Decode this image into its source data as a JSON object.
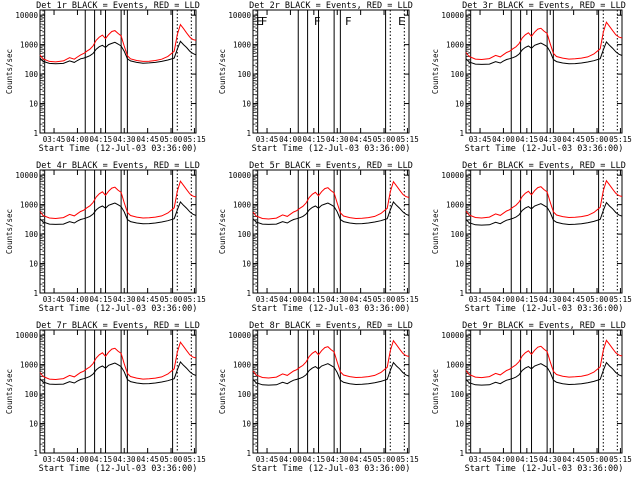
{
  "figure": {
    "xlabel": "Start Time (12-Jul-03 03:36:00)",
    "ylabel": "Counts/sec"
  },
  "chart_data": {
    "type": "line",
    "x_unit": "minutes after 03:36:00",
    "xlim": [
      0,
      100
    ],
    "ylim": [
      1,
      15000
    ],
    "yscale": "log",
    "x_ticks": [
      {
        "label": "03:45",
        "value": 9
      },
      {
        "label": "04:00",
        "value": 24
      },
      {
        "label": "04:15",
        "value": 39
      },
      {
        "label": "04:30",
        "value": 54
      },
      {
        "label": "04:45",
        "value": 69
      },
      {
        "label": "05:00",
        "value": 84
      },
      {
        "label": "05:15",
        "value": 99
      }
    ],
    "y_ticks": [
      {
        "label": "1",
        "value": 1
      },
      {
        "label": "10",
        "value": 10
      },
      {
        "label": "100",
        "value": 100
      },
      {
        "label": "1000",
        "value": 1000
      },
      {
        "label": "10000",
        "value": 10000
      }
    ],
    "solid_markers": [
      3,
      29,
      35,
      42,
      52,
      56,
      85
    ],
    "dotted_markers": [
      2,
      88,
      97
    ],
    "lld_x": [
      0,
      2,
      6,
      10,
      15,
      19,
      22,
      24,
      26,
      28,
      30,
      32,
      34,
      36,
      38,
      40,
      42,
      44,
      46,
      48,
      50,
      52,
      54,
      56,
      58,
      62,
      66,
      70,
      74,
      78,
      82,
      86,
      88,
      90,
      92,
      94,
      96,
      98,
      100
    ],
    "events_x": [
      0,
      2,
      6,
      10,
      15,
      19,
      22,
      24,
      26,
      28,
      30,
      32,
      34,
      36,
      38,
      40,
      42,
      44,
      46,
      48,
      50,
      52,
      54,
      56,
      58,
      62,
      66,
      70,
      74,
      78,
      82,
      86,
      88,
      90,
      92,
      94,
      96,
      98,
      100
    ],
    "panels": [
      {
        "id": "1r",
        "title": "Det 1r BLACK = Events, RED = LLD",
        "has_data": true,
        "lld_scale": 1.0,
        "events_scale": 1.0,
        "lld": [
          450,
          330,
          270,
          260,
          280,
          360,
          320,
          380,
          450,
          500,
          600,
          700,
          900,
          1400,
          1800,
          2100,
          1600,
          2200,
          2800,
          3000,
          2400,
          2000,
          900,
          420,
          330,
          290,
          270,
          275,
          290,
          320,
          400,
          600,
          2200,
          4800,
          3500,
          2500,
          1800,
          1500,
          1400
        ],
        "events": [
          350,
          270,
          230,
          225,
          230,
          280,
          250,
          290,
          330,
          350,
          380,
          420,
          500,
          700,
          850,
          950,
          800,
          1000,
          1100,
          1200,
          1050,
          900,
          600,
          330,
          280,
          250,
          235,
          240,
          250,
          270,
          300,
          350,
          700,
          1300,
          1000,
          800,
          600,
          500,
          450
        ]
      },
      {
        "id": "2r",
        "title": "Det 2r BLACK = Events, RED = LLD",
        "has_data": false,
        "annotations": [
          "E",
          "F",
          "F",
          "F",
          "E"
        ],
        "annotation_x": [
          2,
          5,
          39,
          59,
          93
        ]
      },
      {
        "id": "3r",
        "title": "Det 3r BLACK = Events, RED = LLD",
        "has_data": true,
        "lld_scale": 1.2,
        "events_scale": 0.95
      },
      {
        "id": "4r",
        "title": "Det 4r BLACK = Events, RED = LLD",
        "has_data": true,
        "lld_scale": 1.3,
        "events_scale": 0.95
      },
      {
        "id": "5r",
        "title": "Det 5r BLACK = Events, RED = LLD",
        "has_data": true,
        "lld_scale": 1.25,
        "events_scale": 0.95
      },
      {
        "id": "6r",
        "title": "Det 6r BLACK = Events, RED = LLD",
        "has_data": true,
        "lld_scale": 1.35,
        "events_scale": 0.9
      },
      {
        "id": "7r",
        "title": "Det 7r BLACK = Events, RED = LLD",
        "has_data": true,
        "lld_scale": 1.2,
        "events_scale": 0.95
      },
      {
        "id": "8r",
        "title": "Det 8r BLACK = Events, RED = LLD",
        "has_data": true,
        "lld_scale": 1.35,
        "events_scale": 0.9
      },
      {
        "id": "9r",
        "title": "Det 9r BLACK = Events, RED = LLD",
        "has_data": true,
        "lld_scale": 1.4,
        "events_scale": 0.9
      }
    ]
  },
  "colors": {
    "events": "#000000",
    "lld": "#ff0000",
    "axes": "#000000",
    "background": "#ffffff"
  }
}
